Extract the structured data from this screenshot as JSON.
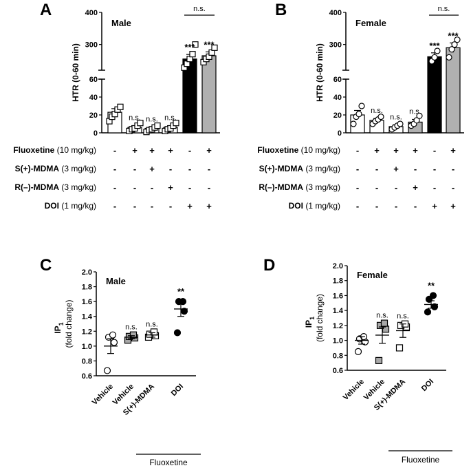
{
  "panels": {
    "A": {
      "label": "A"
    },
    "B": {
      "label": "B"
    },
    "C": {
      "label": "C"
    },
    "D": {
      "label": "D"
    }
  },
  "treatment_rows": [
    {
      "bold": "Fluoxetine",
      "rest": " (10 mg/kg)"
    },
    {
      "bold": "S(+)-MDMA",
      "rest": " (3 mg/kg)"
    },
    {
      "bold": "R(–)-MDMA",
      "rest": " (3 mg/kg)"
    },
    {
      "bold": "DOI",
      "rest": " (1 mg/kg)"
    }
  ],
  "treatment_signs": [
    [
      "-",
      "+",
      "+",
      "+",
      "-",
      "+"
    ],
    [
      "-",
      "-",
      "+",
      "-",
      "-",
      "-"
    ],
    [
      "-",
      "-",
      "-",
      "+",
      "-",
      "-"
    ],
    [
      "-",
      "-",
      "-",
      "-",
      "+",
      "+"
    ]
  ],
  "colors": {
    "black_bar": "#000000",
    "grey_bar": "#b0b0b0",
    "white_bar": "#ffffff",
    "grey_marker": "#a8a8a8"
  },
  "chart_data": [
    {
      "id": "A",
      "type": "bar",
      "subtitle": "Male",
      "ylabel": "HTR (0-60 min)",
      "y_ticks_lower": [
        0,
        20,
        40,
        60
      ],
      "y_ticks_upper": [
        300,
        400
      ],
      "ylim_lower": [
        0,
        60
      ],
      "ylim_upper": [
        220,
        400
      ],
      "groups": [
        {
          "mean": 23,
          "sem": 4,
          "fill": "white",
          "marker": "square",
          "points": [
            13,
            18,
            21,
            26,
            29
          ],
          "sig": ""
        },
        {
          "mean": 6,
          "sem": 2,
          "fill": "white",
          "marker": "square",
          "points": [
            2,
            4,
            5,
            8,
            11
          ],
          "sig": "n.s."
        },
        {
          "mean": 5,
          "sem": 1.5,
          "fill": "white",
          "marker": "square",
          "points": [
            1,
            3,
            4,
            6,
            8
          ],
          "sig": "n.s."
        },
        {
          "mean": 6,
          "sem": 2,
          "fill": "white",
          "marker": "square",
          "points": [
            2,
            4,
            5,
            8,
            11
          ],
          "sig": "n.s."
        },
        {
          "mean": 255,
          "sem": 14,
          "fill": "black",
          "marker": "square",
          "points": [
            228,
            240,
            255,
            270,
            300
          ],
          "sig": "***"
        },
        {
          "mean": 265,
          "sem": 12,
          "fill": "grey",
          "marker": "square",
          "points": [
            245,
            255,
            262,
            275,
            290
          ],
          "sig": "***"
        }
      ],
      "comparison": {
        "between": [
          4,
          5
        ],
        "label": "n.s."
      }
    },
    {
      "id": "B",
      "type": "bar",
      "subtitle": "Female",
      "ylabel": "HTR (0-60 min)",
      "y_ticks_lower": [
        0,
        20,
        40,
        60
      ],
      "y_ticks_upper": [
        300,
        400
      ],
      "ylim_lower": [
        0,
        60
      ],
      "ylim_upper": [
        220,
        400
      ],
      "groups": [
        {
          "mean": 20,
          "sem": 5,
          "fill": "white",
          "marker": "circle",
          "points": [
            10,
            18,
            21,
            30
          ],
          "sig": ""
        },
        {
          "mean": 14,
          "sem": 2,
          "fill": "white",
          "marker": "circle",
          "points": [
            10,
            13,
            15,
            18
          ],
          "sig": "n.s."
        },
        {
          "mean": 7,
          "sem": 2,
          "fill": "white",
          "marker": "circle",
          "points": [
            4,
            6,
            8,
            10
          ],
          "sig": "n.s."
        },
        {
          "mean": 12,
          "sem": 3,
          "fill": "grey",
          "marker": "circle",
          "points": [
            8,
            10,
            14,
            19
          ],
          "sig": "n.s."
        },
        {
          "mean": 262,
          "sem": 12,
          "fill": "black",
          "marker": "circle",
          "points": [
            248,
            260,
            280
          ],
          "sig": "***"
        },
        {
          "mean": 290,
          "sem": 15,
          "fill": "grey",
          "marker": "circle",
          "points": [
            260,
            285,
            300,
            315
          ],
          "sig": "***"
        }
      ],
      "comparison": {
        "between": [
          4,
          5
        ],
        "label": "n.s."
      }
    },
    {
      "id": "C",
      "type": "scatter",
      "subtitle": "Male",
      "ylabel_main": "IP",
      "ylabel_sub": "1",
      "ylabel_unit": "(fold change)",
      "ylim": [
        0.6,
        2.0
      ],
      "y_ticks": [
        "0.6",
        "0.8",
        "1.0",
        "1.2",
        "1.4",
        "1.6",
        "1.8",
        "2.0"
      ],
      "categories": [
        "Vehicle",
        "Vehicle",
        "S(+)-MDMA",
        "DOI"
      ],
      "under_label": "Fluoxetine",
      "groups": [
        {
          "mean": 1.0,
          "sem": 0.1,
          "marker": "circle",
          "fill": "white",
          "points": [
            0.67,
            1.05,
            1.12,
            1.15
          ],
          "sig": ""
        },
        {
          "mean": 1.12,
          "sem": 0.02,
          "marker": "square",
          "fill": "grey",
          "points": [
            1.08,
            1.11,
            1.13,
            1.15
          ],
          "sig": "n.s."
        },
        {
          "mean": 1.15,
          "sem": 0.03,
          "marker": "square",
          "fill": "white",
          "points": [
            1.12,
            1.14,
            1.16,
            1.19
          ],
          "sig": "n.s."
        },
        {
          "mean": 1.5,
          "sem": 0.1,
          "marker": "circle",
          "fill": "black",
          "points": [
            1.18,
            1.47,
            1.6,
            1.6
          ],
          "sig": "**"
        }
      ]
    },
    {
      "id": "D",
      "type": "scatter",
      "subtitle": "Female",
      "ylabel_main": "IP",
      "ylabel_sub": "1",
      "ylabel_unit": "(fold change)",
      "ylim": [
        0.6,
        2.0
      ],
      "y_ticks": [
        "0.6",
        "0.8",
        "1.0",
        "1.2",
        "1.4",
        "1.6",
        "1.8",
        "2.0"
      ],
      "categories": [
        "Vehicle",
        "Vehicle",
        "S(+)-MDMA",
        "DOI"
      ],
      "under_label": "Fluoxetine",
      "groups": [
        {
          "mean": 1.0,
          "sem": 0.05,
          "marker": "circle",
          "fill": "white",
          "points": [
            0.85,
            0.98,
            1.02,
            1.05
          ],
          "sig": ""
        },
        {
          "mean": 1.07,
          "sem": 0.11,
          "marker": "square",
          "fill": "grey",
          "points": [
            0.73,
            1.15,
            1.2,
            1.23
          ],
          "sig": "n.s."
        },
        {
          "mean": 1.13,
          "sem": 0.09,
          "marker": "square",
          "fill": "white",
          "points": [
            0.9,
            1.18,
            1.2,
            1.22
          ],
          "sig": "n.s."
        },
        {
          "mean": 1.48,
          "sem": 0.05,
          "marker": "circle",
          "fill": "black",
          "points": [
            1.38,
            1.45,
            1.55,
            1.6
          ],
          "sig": "**"
        }
      ]
    }
  ]
}
